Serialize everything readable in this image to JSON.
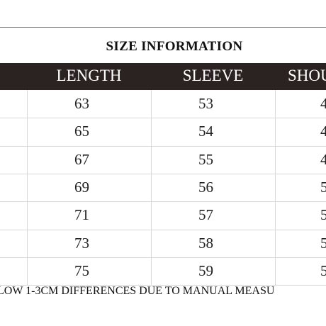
{
  "title": "SIZE INFORMATION",
  "table": {
    "header": [
      "LENGTH",
      "SLEEVE",
      "SHOU"
    ],
    "rows": [
      [
        "63",
        "53",
        "4"
      ],
      [
        "65",
        "54",
        "4"
      ],
      [
        "67",
        "55",
        "4"
      ],
      [
        "69",
        "56",
        "5"
      ],
      [
        "71",
        "57",
        "5"
      ],
      [
        "73",
        "58",
        "5"
      ],
      [
        "75",
        "59",
        "5"
      ]
    ]
  },
  "footer": "LOW 1-3CM DIFFERENCES DUE TO MANUAL MEASU"
}
